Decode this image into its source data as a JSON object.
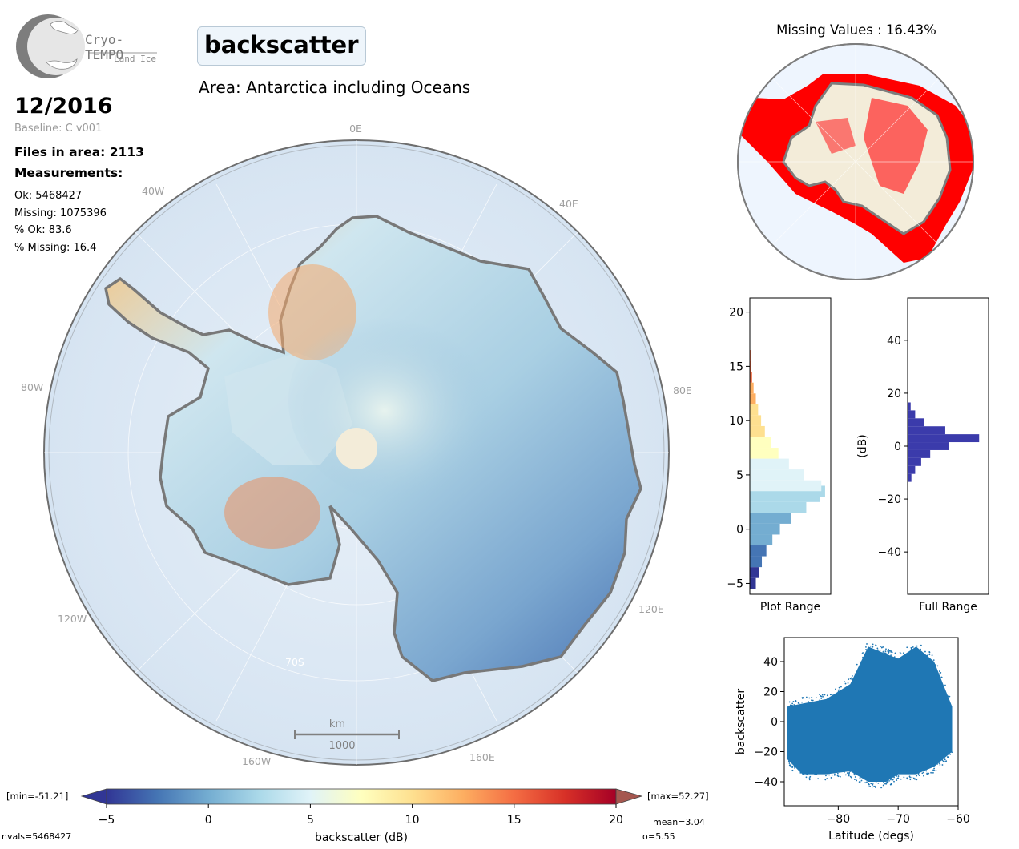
{
  "header": {
    "logo_name": "Cryo-TEMPO",
    "logo_sub": "Land Ice",
    "product_title": "backscatter",
    "area_label": "Area: Antarctica including Oceans"
  },
  "info": {
    "date": "12/2016",
    "baseline": "Baseline: C v001",
    "files": "Files in area: 2113",
    "measurements_heading": "Measurements:",
    "ok": "Ok: 5468427",
    "missing": "Missing: 1075396",
    "pct_ok": "% Ok: 83.6",
    "pct_missing": "% Missing: 16.4"
  },
  "map": {
    "lon_labels": [
      "0E",
      "40W",
      "40E",
      "80W",
      "80E",
      "120W",
      "120E",
      "160W",
      "160E"
    ],
    "lat_label": "70S",
    "scalebar_unit": "km",
    "scalebar_value": "1000"
  },
  "colorbar": {
    "min_label": "[min=-51.21]",
    "max_label": "[max=52.27]",
    "ticks": [
      "−5",
      "0",
      "5",
      "10",
      "15",
      "20"
    ],
    "label": "backscatter (dB)",
    "mean": "mean=3.04",
    "sigma": "σ=5.55",
    "nvals": "nvals=5468427",
    "colors": [
      "#313695",
      "#4575b4",
      "#74add1",
      "#abd9e9",
      "#e0f3f8",
      "#ffffbf",
      "#fee090",
      "#fdae61",
      "#f46d43",
      "#d73027",
      "#a50026"
    ]
  },
  "missing_map": {
    "title": "Missing Values : 16.43%",
    "missing_color": "#ff0000",
    "land_color": "#f3ecd9"
  },
  "chart_data": [
    {
      "type": "bar",
      "orientation": "horizontal",
      "xlabel": "Plot Range",
      "ylabel": "",
      "ylim": [
        -6,
        21.3
      ],
      "yticks": [
        "−5",
        "0",
        "5",
        "10",
        "15",
        "20"
      ],
      "bin_centers": [
        -5,
        -4,
        -3,
        -2,
        -1,
        0,
        1,
        2,
        3,
        3.5,
        4,
        5,
        6,
        7,
        8,
        9,
        10,
        11,
        12,
        13,
        14,
        15,
        16
      ],
      "relative_counts": [
        0.08,
        0.12,
        0.16,
        0.22,
        0.3,
        0.4,
        0.55,
        0.75,
        0.93,
        1.0,
        0.95,
        0.72,
        0.52,
        0.38,
        0.28,
        0.2,
        0.15,
        0.11,
        0.08,
        0.05,
        0.03,
        0.02,
        0.01
      ]
    },
    {
      "type": "bar",
      "orientation": "horizontal",
      "xlabel": "Full Range",
      "ylabel": "(dB)",
      "ylim": [
        -56,
        56
      ],
      "yticks": [
        "−40",
        "−20",
        "0",
        "20",
        "40"
      ],
      "bar_color": "#3b3bab",
      "bin_centers": [
        -15,
        -12,
        -9,
        -6,
        -3,
        0,
        3,
        6,
        9,
        12,
        15
      ],
      "relative_counts": [
        0.01,
        0.05,
        0.1,
        0.18,
        0.3,
        0.55,
        0.95,
        0.5,
        0.22,
        0.1,
        0.04
      ]
    },
    {
      "type": "scatter",
      "xlabel": "Latitude (degs)",
      "ylabel": "backscatter",
      "xlim": [
        -89,
        -60
      ],
      "ylim": [
        -56,
        56
      ],
      "xticks": [
        "−80",
        "−70",
        "−60"
      ],
      "yticks": [
        "−40",
        "−20",
        "0",
        "20",
        "40"
      ],
      "color": "#1f77b4",
      "envelope": [
        {
          "lat": -88.5,
          "low": -25,
          "high": 10
        },
        {
          "lat": -86,
          "low": -35,
          "high": 12
        },
        {
          "lat": -82,
          "low": -35,
          "high": 15
        },
        {
          "lat": -78,
          "low": -33,
          "high": 25
        },
        {
          "lat": -75,
          "low": -40,
          "high": 50
        },
        {
          "lat": -72,
          "low": -40,
          "high": 45
        },
        {
          "lat": -70,
          "low": -35,
          "high": 42
        },
        {
          "lat": -67,
          "low": -35,
          "high": 50
        },
        {
          "lat": -64,
          "low": -30,
          "high": 40
        },
        {
          "lat": -61,
          "low": -20,
          "high": 10
        }
      ]
    }
  ]
}
